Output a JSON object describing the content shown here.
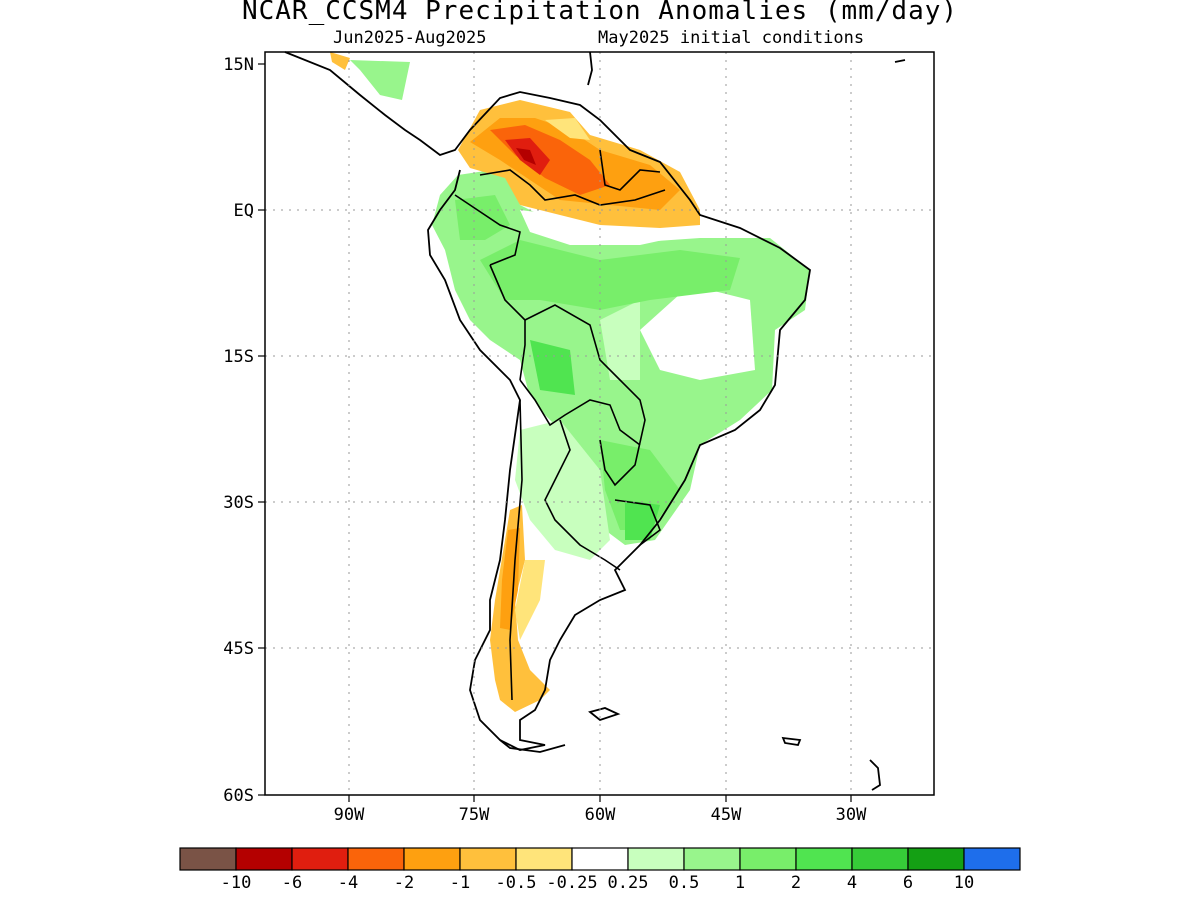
{
  "title": "NCAR_CCSM4 Precipitation Anomalies (mm/day)",
  "subtitle_left": "Jun2025-Aug2025",
  "subtitle_right": "May2025 initial conditions",
  "lat_labels": [
    "15N",
    "EQ",
    "15S",
    "30S",
    "45S",
    "60S"
  ],
  "lon_labels": [
    "90W",
    "75W",
    "60W",
    "45W",
    "30W"
  ],
  "colorbar": {
    "colors": [
      "#7a5346",
      "#b40000",
      "#e01e0f",
      "#fa640a",
      "#fea010",
      "#ffc03c",
      "#ffe47a",
      "#ffffff",
      "#c8ffbe",
      "#98f58c",
      "#78ee6a",
      "#50e450",
      "#36cc38",
      "#14a014",
      "#1e6eeb"
    ],
    "labels": [
      "-10",
      "-6",
      "-4",
      "-2",
      "-1",
      "-0.5",
      "-0.25",
      "0.25",
      "0.5",
      "1",
      "2",
      "4",
      "6",
      "10"
    ]
  }
}
